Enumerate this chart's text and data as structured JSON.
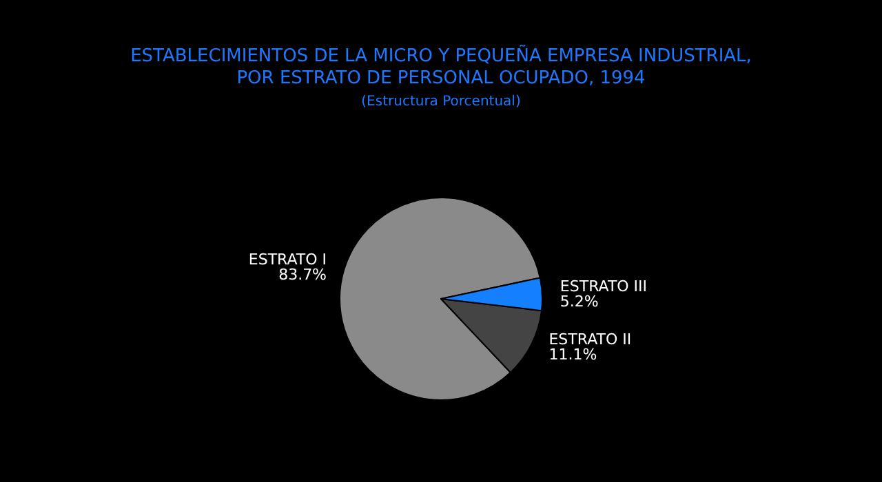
{
  "chart_data": {
    "type": "pie",
    "title": "ESTABLECIMIENTOS DE LA MICRO Y PEQUEÑA EMPRESA INDUSTRIAL,\nPOR ESTRATO DE PERSONAL OCUPADO, 1994",
    "subtitle": "(Estructura Porcentual)",
    "categories": [
      "ESTRATO I",
      "ESTRATO II",
      "ESTRATO III"
    ],
    "values": [
      83.7,
      11.1,
      5.2
    ],
    "colors": [
      "#8a8a8a",
      "#444444",
      "#1480ff"
    ],
    "value_labels": [
      "83.7%",
      "11.1%",
      "5.2%"
    ],
    "legend": false
  }
}
